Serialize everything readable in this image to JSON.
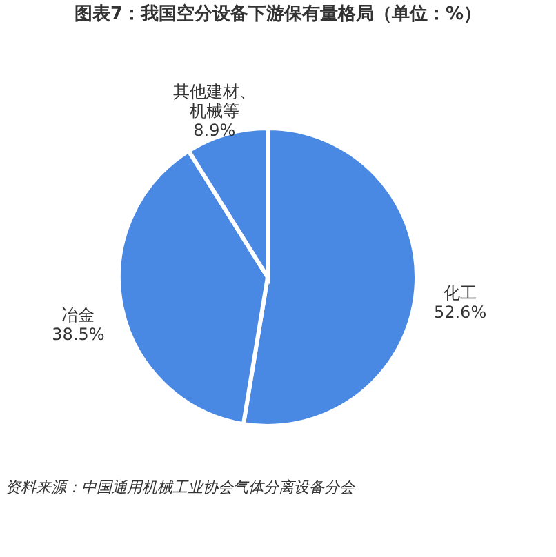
{
  "chart_data": {
    "type": "pie",
    "title": "图表7：我国空分设备下游保有量格局（单位：%）",
    "categories": [
      "化工",
      "冶金",
      "其他建材、机械等"
    ],
    "values": [
      52.6,
      38.5,
      8.9
    ],
    "colors": [
      "#4a89e3",
      "#4a89e3",
      "#4a89e3"
    ],
    "value_labels": [
      "52.6%",
      "38.5%",
      "8.9%"
    ],
    "annotations": [
      "资料来源：中国通用机械工业协会气体分离设备分会"
    ]
  }
}
